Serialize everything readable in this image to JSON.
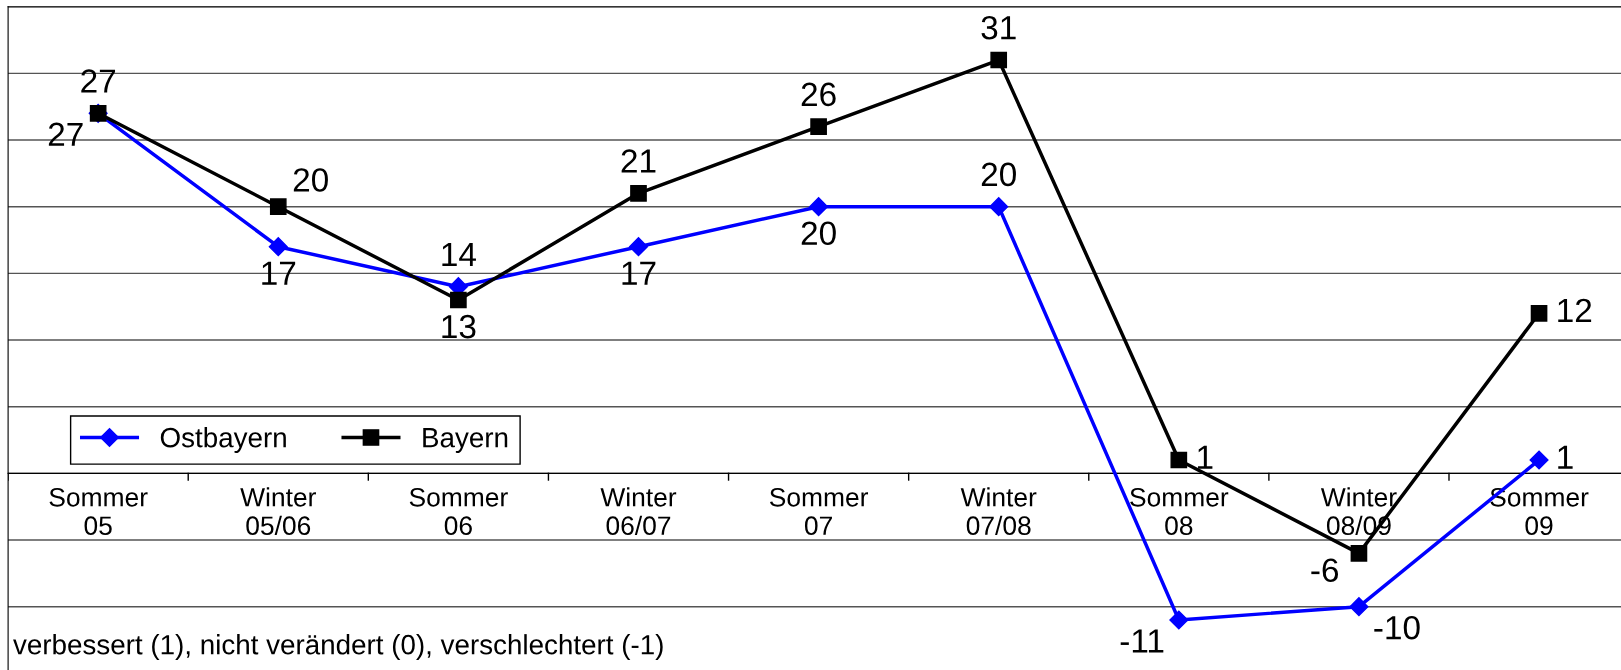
{
  "chart_data": {
    "type": "line",
    "categories": [
      "Sommer\n05",
      "Winter\n05/06",
      "Sommer\n06",
      "Winter\n06/07",
      "Sommer\n07",
      "Winter\n07/08",
      "Sommer\n08",
      "Winter\n08/09",
      "Sommer\n09"
    ],
    "series": [
      {
        "name": "Ostbayern",
        "color": "#0000ff",
        "marker": "diamond",
        "values": [
          27,
          17,
          14,
          17,
          20,
          20,
          -11,
          -10,
          1
        ]
      },
      {
        "name": "Bayern",
        "color": "#000000",
        "marker": "square",
        "values": [
          27,
          20,
          13,
          21,
          26,
          31,
          1,
          -6,
          12
        ]
      }
    ],
    "ylim": [
      -15,
      35
    ],
    "tick_labels": "x",
    "grid": "y",
    "legend": "left",
    "data_labels": true,
    "line_style": "solid",
    "annotations": [
      "verbessert (1), nicht verändert (0), verschlechtert (-1)"
    ]
  }
}
